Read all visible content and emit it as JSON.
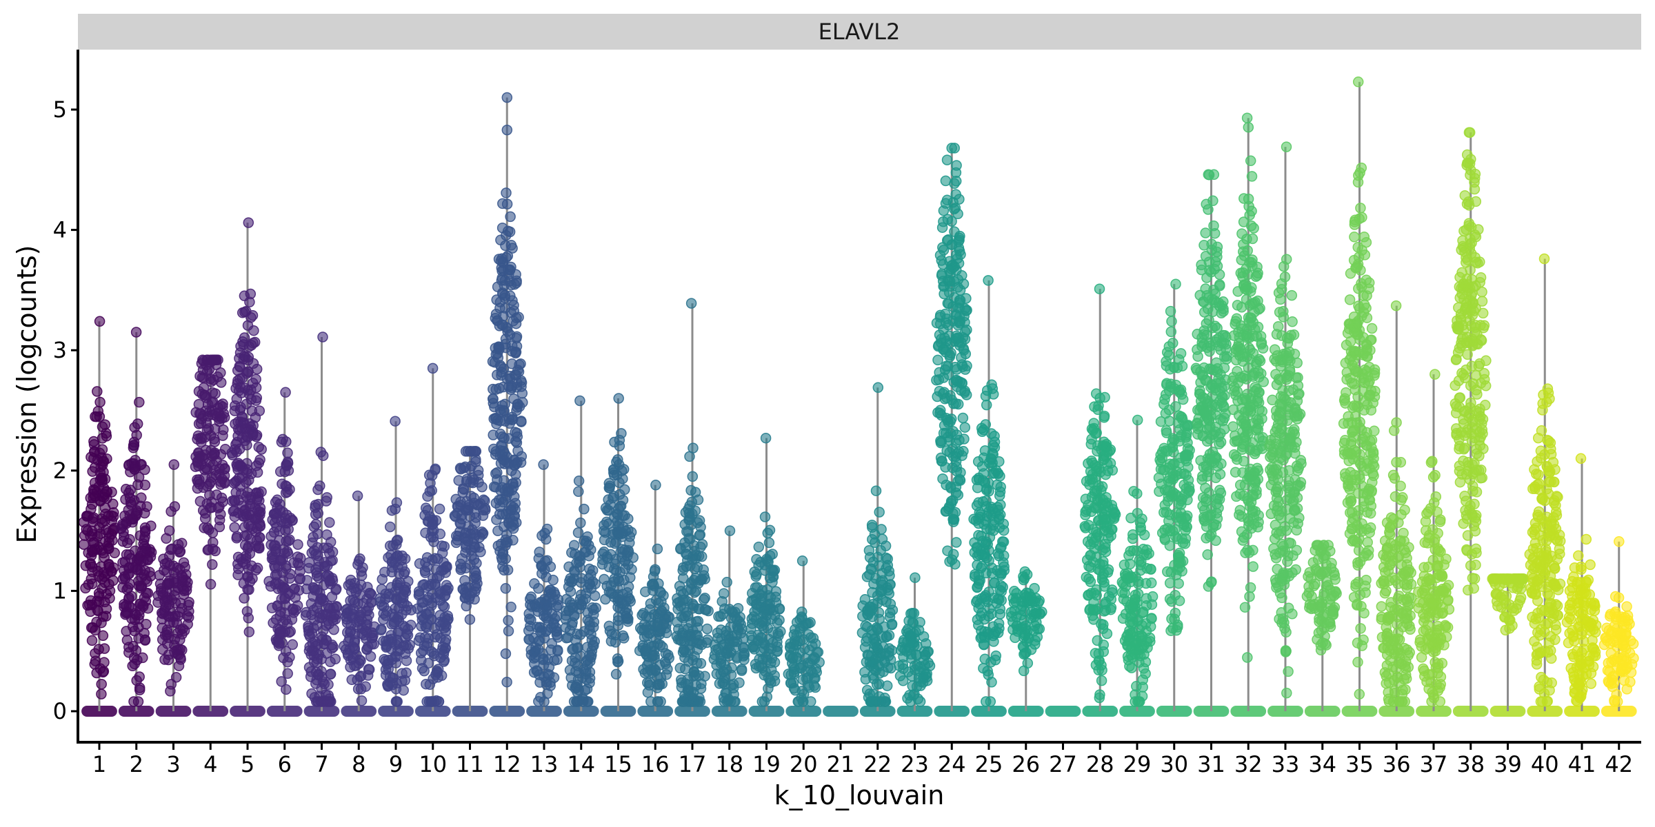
{
  "chart_data": {
    "type": "violin-jitter",
    "facet_title": "ELAVL2",
    "xlabel": "k_10_louvain",
    "ylabel": "Expression (logcounts)",
    "ylim": [
      -0.25,
      5.5
    ],
    "yticks": [
      0,
      1,
      2,
      3,
      4,
      5
    ],
    "grid": false,
    "legend": "none",
    "violin_color": "#8c8c8c",
    "categories": [
      "1",
      "2",
      "3",
      "4",
      "5",
      "6",
      "7",
      "8",
      "9",
      "10",
      "11",
      "12",
      "13",
      "14",
      "15",
      "16",
      "17",
      "18",
      "19",
      "20",
      "21",
      "22",
      "23",
      "24",
      "25",
      "26",
      "27",
      "28",
      "29",
      "30",
      "31",
      "32",
      "33",
      "34",
      "35",
      "36",
      "37",
      "38",
      "39",
      "40",
      "41",
      "42"
    ],
    "colors": [
      "#440154",
      "#460a5d",
      "#471365",
      "#481b6d",
      "#482374",
      "#472b7a",
      "#46327e",
      "#443a83",
      "#414287",
      "#3f4889",
      "#3c4f8a",
      "#39568c",
      "#365c8d",
      "#33638d",
      "#31688e",
      "#2e6e8e",
      "#2c738e",
      "#2a788e",
      "#287d8e",
      "#26828e",
      "#24878e",
      "#228c8d",
      "#20928c",
      "#1f978b",
      "#1e9c89",
      "#20a386",
      "#23a884",
      "#28ae80",
      "#2fb47c",
      "#38b977",
      "#42be71",
      "#4dc36b",
      "#58c765",
      "#66cb5d",
      "#73d056",
      "#82d34d",
      "#8fd744",
      "#a0da39",
      "#b0dd2f",
      "#c0df25",
      "#d2e21b",
      "#fde725"
    ],
    "max_values": [
      3.24,
      3.15,
      2.05,
      2.92,
      4.06,
      2.65,
      3.11,
      1.79,
      2.41,
      2.85,
      2.16,
      5.1,
      2.05,
      2.58,
      2.6,
      1.88,
      3.39,
      1.5,
      2.27,
      1.25,
      0,
      2.69,
      1.11,
      4.68,
      3.58,
      1.16,
      0,
      3.51,
      2.42,
      3.55,
      4.46,
      4.93,
      4.69,
      1.38,
      5.23,
      3.37,
      2.8,
      4.81,
      1.1,
      3.76,
      2.1,
      1.41
    ],
    "modes": [
      1.4,
      1.3,
      0.9,
      2.2,
      2.0,
      1.2,
      0.8,
      0.7,
      0.8,
      0.9,
      1.6,
      2.5,
      0.7,
      0.8,
      1.3,
      0.6,
      0.8,
      0.5,
      0.8,
      0.4,
      0,
      0.7,
      0.4,
      3.0,
      1.4,
      0.8,
      0,
      1.5,
      0.9,
      2.0,
      2.8,
      2.6,
      2.1,
      1.0,
      2.5,
      0.9,
      0.9,
      2.8,
      1.1,
      1.3,
      0.7,
      0.5
    ]
  }
}
